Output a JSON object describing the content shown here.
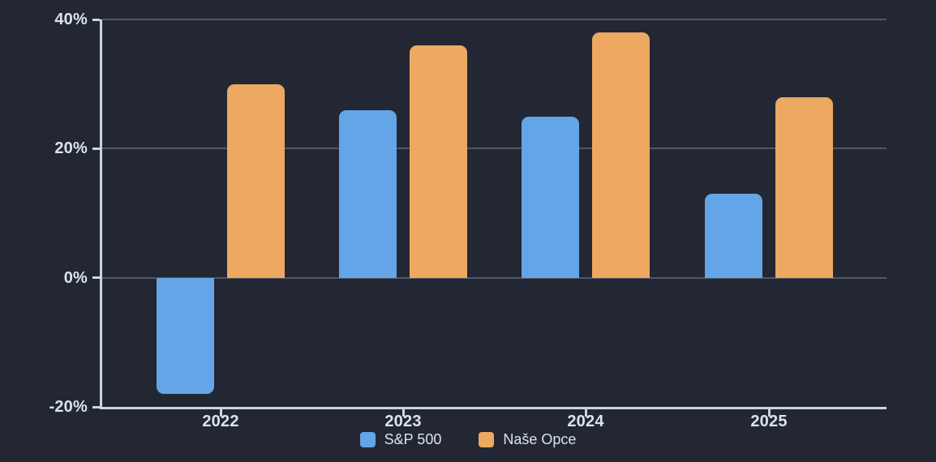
{
  "chart_data": {
    "type": "bar",
    "title": "",
    "xlabel": "",
    "ylabel": "",
    "categories": [
      "2022",
      "2023",
      "2024",
      "2025"
    ],
    "series": [
      {
        "name": "S&P 500",
        "color": "#64a5e8",
        "values": [
          -18,
          26,
          25,
          13
        ]
      },
      {
        "name": "Naše Opce",
        "color": "#eda862",
        "values": [
          30,
          36,
          38,
          28
        ]
      }
    ],
    "ylim": [
      -20,
      40
    ],
    "yticks": [
      40,
      20,
      0,
      -20
    ],
    "ytick_labels": [
      "40%",
      "20%",
      "0%",
      "-20%"
    ],
    "xtick_labels": [
      "2022",
      "2023",
      "2024",
      "2025"
    ],
    "grid": true,
    "legend_position": "bottom"
  },
  "colors": {
    "background": "#222733",
    "axis": "#ccd6e2",
    "tick_label": "#dbe3ee",
    "gridline": "#4f5665"
  }
}
